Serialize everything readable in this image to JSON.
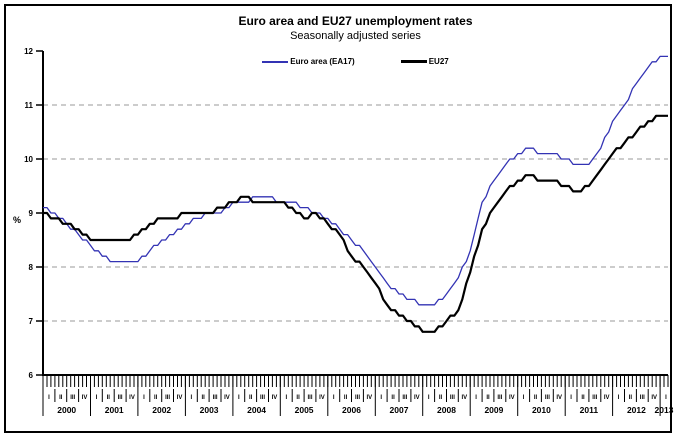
{
  "title": "Euro area and EU27 unemployment rates",
  "subtitle": "Seasonally adjusted series",
  "y_axis_label": "%",
  "legend": [
    {
      "label": "Euro area (EA17)",
      "color": "#3333b4",
      "thickness": 2
    },
    {
      "label": "EU27",
      "color": "#000000",
      "thickness": 3
    }
  ],
  "chart_data": {
    "type": "line",
    "title": "Euro area and EU27 unemployment rates",
    "subtitle": "Seasonally adjusted series",
    "ylabel": "%",
    "ylim": [
      6,
      12
    ],
    "y_ticks": [
      6,
      7,
      8,
      9,
      10,
      11,
      12
    ],
    "gridlines_at": [
      7,
      8,
      10,
      11
    ],
    "grid_style": "dashed-horizontal",
    "legend_position": "top-center",
    "x_axis": {
      "unit": "quarter",
      "quarter_labels": [
        "I",
        "II",
        "III",
        "IV"
      ],
      "years": [
        "2000",
        "2001",
        "2002",
        "2003",
        "2004",
        "2005",
        "2006",
        "2007",
        "2008",
        "2009",
        "2010",
        "2011",
        "2012",
        "2013"
      ],
      "last_year_quarters": 1,
      "total_quarters": 53
    },
    "series": [
      {
        "name": "Euro area (EA17)",
        "color": "#3333b4",
        "stroke_width": 1.3,
        "values": [
          9.1,
          9.0,
          8.8,
          8.6,
          8.4,
          8.2,
          8.1,
          8.1,
          8.1,
          8.3,
          8.5,
          8.6,
          8.8,
          8.9,
          9.0,
          9.0,
          9.2,
          9.2,
          9.3,
          9.3,
          9.2,
          9.2,
          9.1,
          9.0,
          8.9,
          8.7,
          8.5,
          8.3,
          8.0,
          7.7,
          7.5,
          7.4,
          7.3,
          7.3,
          7.5,
          7.8,
          8.3,
          9.2,
          9.6,
          9.9,
          10.1,
          10.2,
          10.1,
          10.1,
          10.0,
          9.9,
          9.9,
          10.2,
          10.7,
          11.0,
          11.4,
          11.7,
          11.9
        ]
      },
      {
        "name": "EU27",
        "color": "#000000",
        "stroke_width": 2.2,
        "values": [
          9.0,
          8.9,
          8.8,
          8.7,
          8.5,
          8.5,
          8.5,
          8.5,
          8.6,
          8.8,
          8.9,
          8.9,
          9.0,
          9.0,
          9.0,
          9.1,
          9.2,
          9.3,
          9.2,
          9.2,
          9.2,
          9.1,
          8.9,
          9.0,
          8.8,
          8.6,
          8.2,
          8.0,
          7.7,
          7.3,
          7.1,
          7.0,
          6.8,
          6.8,
          7.0,
          7.2,
          7.9,
          8.7,
          9.1,
          9.4,
          9.6,
          9.7,
          9.6,
          9.6,
          9.5,
          9.4,
          9.5,
          9.8,
          10.1,
          10.3,
          10.5,
          10.7,
          10.8
        ]
      }
    ]
  }
}
